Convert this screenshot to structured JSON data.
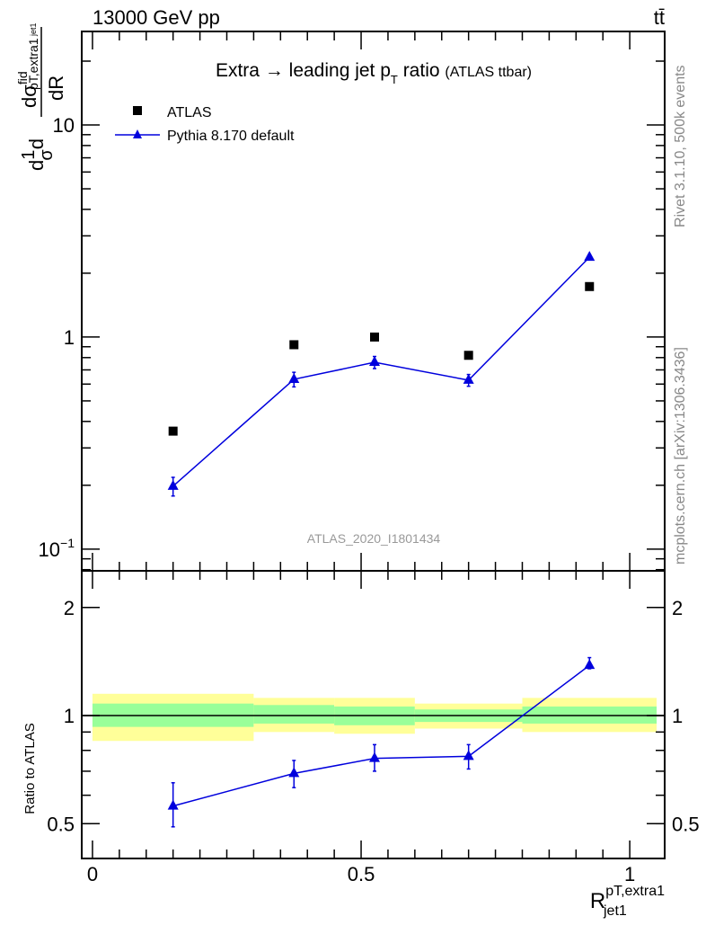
{
  "header": {
    "left": "13000 GeV pp",
    "right": "tt̄"
  },
  "side_labels": {
    "rivet": "Rivet 3.1.10,  500k events",
    "source": "mcplots.cern.ch [arXiv:1306.3436]"
  },
  "watermark": "ATLAS_2020_I1801434",
  "chart_data": [
    {
      "type": "scatter",
      "title": "Extra → leading jet p",
      "title_sub": "T",
      "title_rest": " ratio",
      "title_small": "(ATLAS ttbar)",
      "ylabel_parts": {
        "d1": "d",
        "one": "1",
        "sigma": "σ",
        "d2": "d",
        "num": "dσ",
        "fid": "fid",
        "pt": "pT,extra1",
        "den": "dR",
        "jet": "jet1"
      },
      "yscale": "log",
      "ylim": [
        0.079,
        27.6
      ],
      "xlim": [
        -0.02,
        1.065
      ],
      "yticks": [
        {
          "v": 0.1,
          "label": "10",
          "exp": "−1"
        },
        {
          "v": 1,
          "label": "1"
        },
        {
          "v": 10,
          "label": "10"
        }
      ],
      "legend_position": "top-left",
      "series": [
        {
          "name": "ATLAS",
          "marker": "square",
          "color": "#000000",
          "x": [
            0.15,
            0.375,
            0.525,
            0.7,
            0.925
          ],
          "y": [
            0.36,
            0.92,
            1.0,
            0.82,
            1.73
          ]
        },
        {
          "name": "Pythia 8.170 default",
          "marker": "triangle",
          "color": "#0000dd",
          "x": [
            0.15,
            0.375,
            0.525,
            0.7,
            0.925
          ],
          "y": [
            0.198,
            0.632,
            0.76,
            0.626,
            2.38
          ],
          "yerr": [
            0.02,
            0.05,
            0.05,
            0.04,
            0.06
          ]
        }
      ]
    },
    {
      "type": "scatter",
      "ylabel": "Ratio to ATLAS",
      "xlabel": "R",
      "xlabel_sup": "pT,extra1",
      "xlabel_sub": "jet1",
      "yscale": "log",
      "ylim": [
        0.4,
        2.53
      ],
      "xlim": [
        -0.02,
        1.065
      ],
      "yticks": [
        {
          "v": 0.5,
          "label": "0.5"
        },
        {
          "v": 1,
          "label": "1"
        },
        {
          "v": 2,
          "label": "2"
        }
      ],
      "xticks": [
        {
          "v": 0,
          "label": "0"
        },
        {
          "v": 0.5,
          "label": "0.5"
        },
        {
          "v": 1,
          "label": "1"
        }
      ],
      "bands": {
        "edges": [
          0,
          0.3,
          0.45,
          0.6,
          0.8,
          1.05
        ],
        "yellow_lo": [
          0.85,
          0.9,
          0.89,
          0.92,
          0.9
        ],
        "yellow_hi": [
          1.15,
          1.12,
          1.12,
          1.08,
          1.12
        ],
        "green_lo": [
          0.93,
          0.95,
          0.94,
          0.96,
          0.95
        ],
        "green_hi": [
          1.08,
          1.07,
          1.06,
          1.04,
          1.06
        ],
        "yellow_color": "#ffff99",
        "green_color": "#99ff99"
      },
      "series": [
        {
          "name": "Pythia 8.170 default",
          "color": "#0000dd",
          "x": [
            0.15,
            0.375,
            0.525,
            0.7,
            0.925
          ],
          "y": [
            0.56,
            0.69,
            0.76,
            0.77,
            1.38
          ],
          "ylo": [
            0.49,
            0.63,
            0.7,
            0.71,
            1.35
          ],
          "yhi": [
            0.65,
            0.75,
            0.83,
            0.83,
            1.45
          ]
        }
      ]
    }
  ]
}
